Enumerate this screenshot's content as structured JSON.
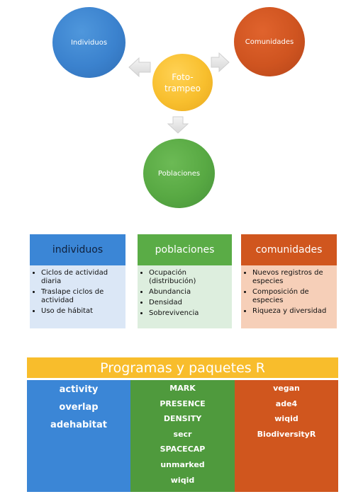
{
  "cycle": {
    "center": "Foto-\ntrampeo",
    "left": "Individuos",
    "right": "Comunidades",
    "bottom": "Poblaciones"
  },
  "categories": [
    {
      "title": "individuos",
      "items": [
        "Ciclos de actividad diaria",
        "Traslape ciclos de actividad",
        "Uso de hábitat"
      ]
    },
    {
      "title": "poblaciones",
      "items": [
        "Ocupación (distribución)",
        "Abundancia",
        "Densidad",
        "Sobrevivencia"
      ]
    },
    {
      "title": "comunidades",
      "items": [
        "Nuevos registros de especies",
        "Composición de especies",
        "Riqueza y diversidad"
      ]
    }
  ],
  "programs": {
    "title": "Programas y paquetes R",
    "columns": [
      [
        "activity",
        "overlap",
        "adehabitat"
      ],
      [
        "MARK",
        "PRESENCE",
        "DENSITY",
        "secr",
        "SPACECAP",
        "unmarked",
        "wiqid"
      ],
      [
        "vegan",
        "ade4",
        "wiqid",
        "BiodiversityR"
      ]
    ]
  },
  "colors": {
    "blue": "#3b86d6",
    "green": "#5aac46",
    "orange": "#d0561e",
    "yellow": "#f8bd2c"
  }
}
